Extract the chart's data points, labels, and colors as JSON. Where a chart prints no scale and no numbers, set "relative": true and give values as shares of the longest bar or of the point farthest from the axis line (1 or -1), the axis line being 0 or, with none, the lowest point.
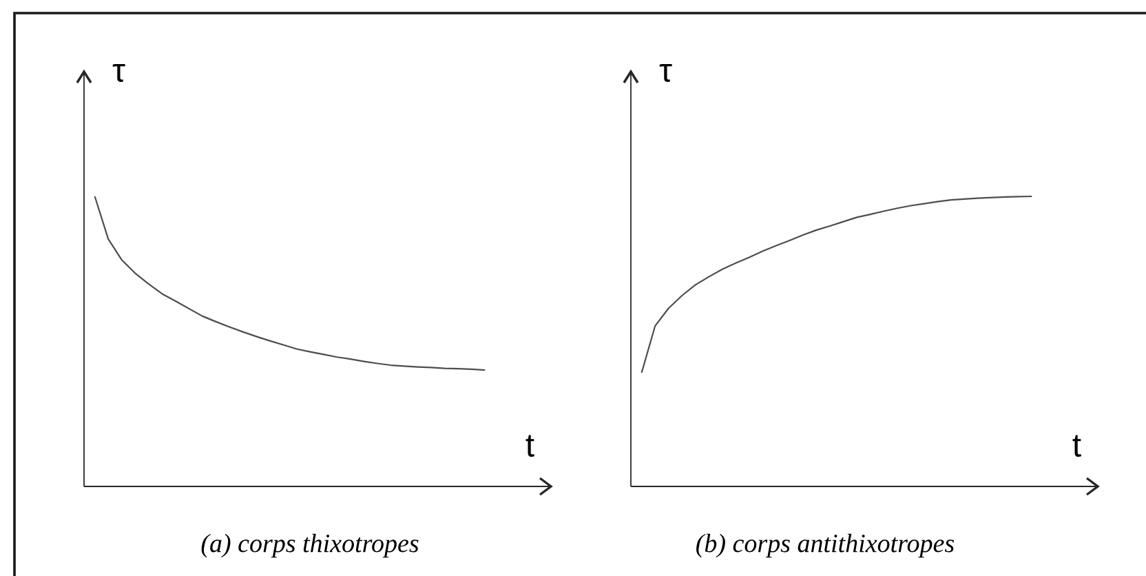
{
  "chart_data": [
    {
      "type": "line",
      "title": "(a) corps thixotropes",
      "xlabel": "t",
      "ylabel": "τ",
      "relative": true,
      "color": "#4d4d4d",
      "categories": [
        null,
        null,
        null,
        null,
        null,
        null,
        null,
        null,
        null,
        null,
        null,
        null,
        null,
        null,
        null,
        null,
        null,
        null,
        null,
        null,
        null,
        null,
        null,
        null,
        null,
        null,
        null,
        null,
        null,
        null
      ],
      "values": [
        1,
        0.853,
        0.781,
        0.735,
        0.698,
        0.664,
        0.639,
        0.613,
        0.587,
        0.568,
        0.55,
        0.533,
        0.517,
        0.502,
        0.488,
        0.474,
        0.464,
        0.455,
        0.446,
        0.439,
        0.431,
        0.424,
        0.418,
        0.415,
        0.412,
        0.41,
        0.407,
        0.406,
        0.404,
        0.401
      ]
    },
    {
      "type": "line",
      "title": "(b) corps antithixotropes",
      "xlabel": "t",
      "ylabel": "τ",
      "relative": true,
      "color": "#4d4d4d",
      "categories": [
        null,
        null,
        null,
        null,
        null,
        null,
        null,
        null,
        null,
        null,
        null,
        null,
        null,
        null,
        null,
        null,
        null,
        null,
        null,
        null,
        null,
        null,
        null,
        null,
        null,
        null,
        null,
        null,
        null,
        null
      ],
      "values": [
        0.392,
        0.553,
        0.614,
        0.658,
        0.695,
        0.723,
        0.749,
        0.77,
        0.79,
        0.811,
        0.83,
        0.848,
        0.867,
        0.884,
        0.898,
        0.913,
        0.928,
        0.938,
        0.949,
        0.959,
        0.968,
        0.975,
        0.982,
        0.988,
        0.991,
        0.994,
        0.996,
        0.998,
        0.999,
        1
      ]
    }
  ]
}
